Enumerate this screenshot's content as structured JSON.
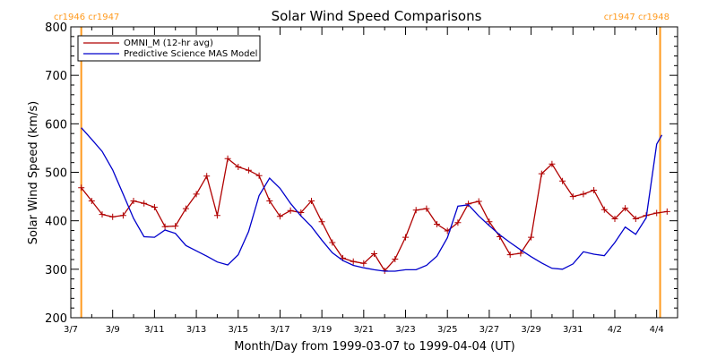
{
  "chart_data": {
    "type": "line",
    "title": "Solar Wind Speed Comparisons",
    "xlabel": "Month/Day from 1999-03-07 to 1999-04-04 (UT)",
    "ylabel": "Solar Wind Speed (km/s)",
    "xlim": [
      "1999-03-07",
      "1999-04-05"
    ],
    "ylim": [
      200,
      800
    ],
    "grid": false,
    "legend_position": "top-left",
    "x_ticks": [
      {
        "label": "3/7",
        "date": "1999-03-07"
      },
      {
        "label": "3/9",
        "date": "1999-03-09"
      },
      {
        "label": "3/11",
        "date": "1999-03-11"
      },
      {
        "label": "3/13",
        "date": "1999-03-13"
      },
      {
        "label": "3/15",
        "date": "1999-03-15"
      },
      {
        "label": "3/17",
        "date": "1999-03-17"
      },
      {
        "label": "3/19",
        "date": "1999-03-19"
      },
      {
        "label": "3/21",
        "date": "1999-03-21"
      },
      {
        "label": "3/23",
        "date": "1999-03-23"
      },
      {
        "label": "3/25",
        "date": "1999-03-25"
      },
      {
        "label": "3/27",
        "date": "1999-03-27"
      },
      {
        "label": "3/29",
        "date": "1999-03-29"
      },
      {
        "label": "3/31",
        "date": "1999-03-31"
      },
      {
        "label": "4/2",
        "date": "1999-04-02"
      },
      {
        "label": "4/4",
        "date": "1999-04-04"
      }
    ],
    "y_ticks": [
      200,
      300,
      400,
      500,
      600,
      700,
      800
    ],
    "carrington_markers": [
      {
        "labels": [
          "cr1946",
          "cr1947"
        ],
        "date": "1999-03-07T12:00",
        "color": "#ff9a1e"
      },
      {
        "labels": [
          "cr1947",
          "cr1948"
        ],
        "date": "1999-04-04T04:00",
        "color": "#ff9a1e"
      }
    ],
    "series": [
      {
        "name": "OMNI_M (12-hr avg)",
        "color": "#b00000",
        "marker": "plus",
        "points": [
          [
            "1999-03-07T12:00",
            468
          ],
          [
            "1999-03-08T00:00",
            441
          ],
          [
            "1999-03-08T12:00",
            413
          ],
          [
            "1999-03-09T00:00",
            408
          ],
          [
            "1999-03-09T12:00",
            411
          ],
          [
            "1999-03-10T00:00",
            441
          ],
          [
            "1999-03-10T12:00",
            436
          ],
          [
            "1999-03-11T00:00",
            428
          ],
          [
            "1999-03-11T12:00",
            388
          ],
          [
            "1999-03-12T00:00",
            389
          ],
          [
            "1999-03-12T12:00",
            425
          ],
          [
            "1999-03-13T00:00",
            455
          ],
          [
            "1999-03-13T12:00",
            492
          ],
          [
            "1999-03-14T00:00",
            411
          ],
          [
            "1999-03-14T12:00",
            528
          ],
          [
            "1999-03-15T00:00",
            511
          ],
          [
            "1999-03-15T12:00",
            504
          ],
          [
            "1999-03-16T00:00",
            493
          ],
          [
            "1999-03-16T12:00",
            441
          ],
          [
            "1999-03-17T00:00",
            409
          ],
          [
            "1999-03-17T12:00",
            421
          ],
          [
            "1999-03-18T00:00",
            417
          ],
          [
            "1999-03-18T12:00",
            441
          ],
          [
            "1999-03-19T00:00",
            398
          ],
          [
            "1999-03-19T12:00",
            355
          ],
          [
            "1999-03-20T00:00",
            323
          ],
          [
            "1999-03-20T12:00",
            316
          ],
          [
            "1999-03-21T00:00",
            312
          ],
          [
            "1999-03-21T12:00",
            332
          ],
          [
            "1999-03-22T00:00",
            297
          ],
          [
            "1999-03-22T12:00",
            321
          ],
          [
            "1999-03-23T00:00",
            366
          ],
          [
            "1999-03-23T12:00",
            422
          ],
          [
            "1999-03-24T00:00",
            425
          ],
          [
            "1999-03-24T12:00",
            393
          ],
          [
            "1999-03-25T00:00",
            379
          ],
          [
            "1999-03-25T12:00",
            396
          ],
          [
            "1999-03-26T00:00",
            435
          ],
          [
            "1999-03-26T12:00",
            440
          ],
          [
            "1999-03-27T00:00",
            398
          ],
          [
            "1999-03-27T12:00",
            367
          ],
          [
            "1999-03-28T00:00",
            330
          ],
          [
            "1999-03-28T12:00",
            333
          ],
          [
            "1999-03-29T00:00",
            366
          ],
          [
            "1999-03-29T12:00",
            497
          ],
          [
            "1999-03-30T00:00",
            517
          ],
          [
            "1999-03-30T12:00",
            482
          ],
          [
            "1999-03-31T00:00",
            450
          ],
          [
            "1999-03-31T12:00",
            455
          ],
          [
            "1999-04-01T00:00",
            463
          ],
          [
            "1999-04-01T12:00",
            423
          ],
          [
            "1999-04-02T00:00",
            404
          ],
          [
            "1999-04-02T12:00",
            426
          ],
          [
            "1999-04-03T00:00",
            404
          ],
          [
            "1999-04-03T12:00",
            411
          ],
          [
            "1999-04-04T00:00",
            416
          ],
          [
            "1999-04-04T12:00",
            419
          ]
        ]
      },
      {
        "name": "Predictive Science MAS Model",
        "color": "#0000cc",
        "marker": "none",
        "points": [
          [
            "1999-03-07T12:00",
            592
          ],
          [
            "1999-03-08T00:00",
            568
          ],
          [
            "1999-03-08T12:00",
            543
          ],
          [
            "1999-03-09T00:00",
            505
          ],
          [
            "1999-03-09T12:00",
            455
          ],
          [
            "1999-03-10T00:00",
            405
          ],
          [
            "1999-03-10T12:00",
            367
          ],
          [
            "1999-03-11T00:00",
            366
          ],
          [
            "1999-03-11T12:00",
            381
          ],
          [
            "1999-03-12T00:00",
            374
          ],
          [
            "1999-03-12T12:00",
            349
          ],
          [
            "1999-03-13T00:00",
            338
          ],
          [
            "1999-03-13T12:00",
            327
          ],
          [
            "1999-03-14T00:00",
            315
          ],
          [
            "1999-03-14T12:00",
            309
          ],
          [
            "1999-03-15T00:00",
            330
          ],
          [
            "1999-03-15T12:00",
            378
          ],
          [
            "1999-03-16T00:00",
            452
          ],
          [
            "1999-03-16T12:00",
            488
          ],
          [
            "1999-03-17T00:00",
            467
          ],
          [
            "1999-03-17T12:00",
            436
          ],
          [
            "1999-03-18T00:00",
            410
          ],
          [
            "1999-03-18T12:00",
            388
          ],
          [
            "1999-03-19T00:00",
            360
          ],
          [
            "1999-03-19T12:00",
            334
          ],
          [
            "1999-03-20T00:00",
            318
          ],
          [
            "1999-03-20T12:00",
            308
          ],
          [
            "1999-03-21T00:00",
            303
          ],
          [
            "1999-03-21T12:00",
            299
          ],
          [
            "1999-03-22T00:00",
            296
          ],
          [
            "1999-03-22T12:00",
            296
          ],
          [
            "1999-03-23T00:00",
            299
          ],
          [
            "1999-03-23T12:00",
            299
          ],
          [
            "1999-03-24T00:00",
            308
          ],
          [
            "1999-03-24T12:00",
            327
          ],
          [
            "1999-03-25T00:00",
            365
          ],
          [
            "1999-03-25T12:00",
            430
          ],
          [
            "1999-03-26T00:00",
            433
          ],
          [
            "1999-03-26T12:00",
            410
          ],
          [
            "1999-03-27T00:00",
            390
          ],
          [
            "1999-03-27T12:00",
            371
          ],
          [
            "1999-03-28T00:00",
            355
          ],
          [
            "1999-03-28T12:00",
            340
          ],
          [
            "1999-03-29T00:00",
            326
          ],
          [
            "1999-03-29T12:00",
            313
          ],
          [
            "1999-03-30T00:00",
            302
          ],
          [
            "1999-03-30T12:00",
            300
          ],
          [
            "1999-03-31T00:00",
            311
          ],
          [
            "1999-03-31T12:00",
            336
          ],
          [
            "1999-04-01T00:00",
            331
          ],
          [
            "1999-04-01T12:00",
            328
          ],
          [
            "1999-04-02T00:00",
            355
          ],
          [
            "1999-04-02T12:00",
            387
          ],
          [
            "1999-04-03T00:00",
            372
          ],
          [
            "1999-04-03T12:00",
            406
          ],
          [
            "1999-04-04T00:00",
            558
          ],
          [
            "1999-04-04T06:00",
            577
          ]
        ]
      }
    ]
  }
}
